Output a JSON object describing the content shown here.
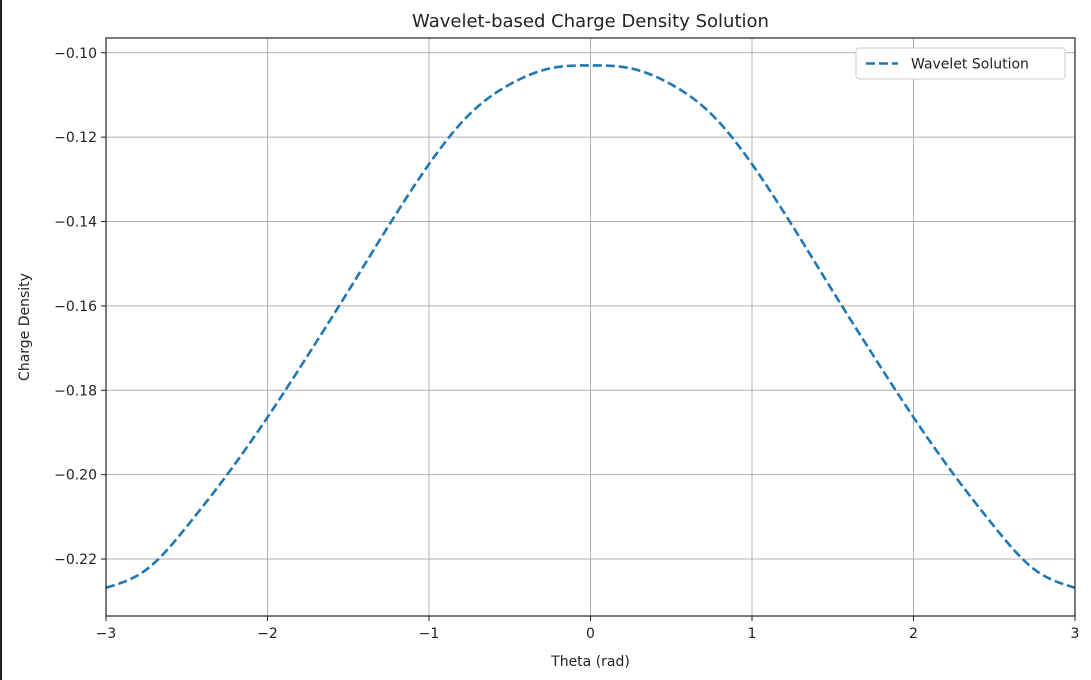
{
  "chart_data": {
    "type": "line",
    "title": "Wavelet-based Charge Density Solution",
    "xlabel": "Theta (rad)",
    "ylabel": "Charge Density",
    "xlim": [
      -3,
      3
    ],
    "ylim": [
      -0.2335,
      -0.0965
    ],
    "xticks": [
      -3,
      -2,
      -1,
      0,
      1,
      2,
      3
    ],
    "xtick_labels": [
      "−3",
      "−2",
      "−1",
      "0",
      "1",
      "2",
      "3"
    ],
    "yticks": [
      -0.22,
      -0.2,
      -0.18,
      -0.16,
      -0.14,
      -0.12,
      -0.1
    ],
    "ytick_labels": [
      "−0.22",
      "−0.20",
      "−0.18",
      "−0.16",
      "−0.14",
      "−0.12",
      "−0.10"
    ],
    "grid": true,
    "legend_position": "top-right",
    "series": [
      {
        "name": "Wavelet Solution",
        "color": "#1f77b4",
        "line_style": "dashed",
        "x": [
          -3.0,
          -2.75,
          -2.5,
          -2.25,
          -2.0,
          -1.75,
          -1.5,
          -1.25,
          -1.0,
          -0.75,
          -0.5,
          -0.25,
          0.0,
          0.25,
          0.5,
          0.75,
          1.0,
          1.25,
          1.5,
          1.75,
          2.0,
          2.25,
          2.5,
          2.75,
          3.0
        ],
        "y": [
          -0.2268,
          -0.2225,
          -0.2123,
          -0.2,
          -0.1864,
          -0.1717,
          -0.1565,
          -0.141,
          -0.1264,
          -0.1146,
          -0.1075,
          -0.1037,
          -0.103,
          -0.1037,
          -0.1075,
          -0.1146,
          -0.1264,
          -0.141,
          -0.1565,
          -0.1717,
          -0.1864,
          -0.2,
          -0.2123,
          -0.2225,
          -0.2268
        ]
      }
    ]
  }
}
